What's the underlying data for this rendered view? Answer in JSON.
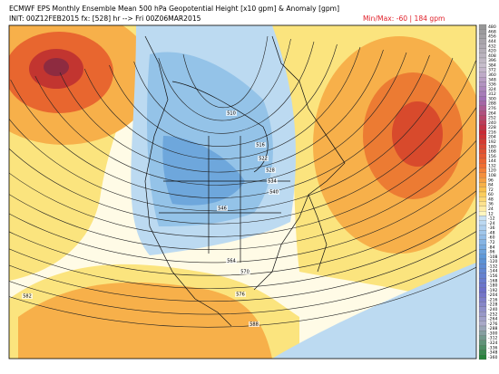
{
  "header": {
    "title": "ECMWF EPS Monthly Ensemble Mean 500 hPa Geopotential Height [x10 gpm] & Anomaly [gpm]",
    "init": "INIT: 00Z12FEB2015 fx: [528] hr --> Fri 00Z06MAR2015",
    "minmax": "Min/Max:  -60 | 184 gpm"
  },
  "colorbar": {
    "labels": [
      "480",
      "468",
      "456",
      "444",
      "432",
      "420",
      "408",
      "396",
      "384",
      "372",
      "360",
      "348",
      "336",
      "324",
      "312",
      "300",
      "288",
      "276",
      "264",
      "252",
      "240",
      "228",
      "216",
      "204",
      "192",
      "180",
      "168",
      "156",
      "144",
      "132",
      "120",
      "108",
      "96",
      "84",
      "72",
      "60",
      "48",
      "36",
      "24",
      "12",
      "-12",
      "-24",
      "-36",
      "-48",
      "-60",
      "-72",
      "-84",
      "-96",
      "-108",
      "-120",
      "-132",
      "-144",
      "-156",
      "-168",
      "-180",
      "-192",
      "-204",
      "-216",
      "-228",
      "-240",
      "-252",
      "-264",
      "-276",
      "-288",
      "-300",
      "-312",
      "-324",
      "-336",
      "-348",
      "-360"
    ]
  },
  "contours": [
    "510",
    "516",
    "522",
    "528",
    "534",
    "540",
    "546",
    "564",
    "570",
    "576",
    "582",
    "588"
  ]
}
